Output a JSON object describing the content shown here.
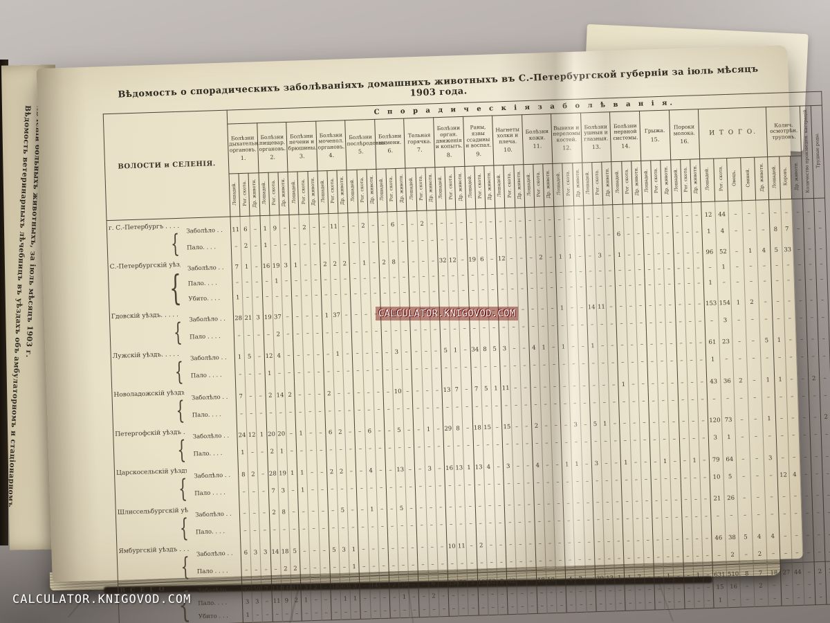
{
  "watermarks": {
    "center": "CALCULATOR.KNIGOVOD.COM",
    "bottom_left": "CALCULATOR.KNIGOVOD.COM"
  },
  "left_page": {
    "vertical_title": "Вѣдомость ветеринарныхъ лѣчебницъ въ уѣздахъ объ амбулаторномъ и стаціонарномъ лѣченіи больныхъ животныхъ, за іюль мѣсяцъ 1903 г."
  },
  "page": {
    "title": "Вѣдомость о спорадическихъ заболѣваніяхъ домашнихъ животныхъ въ С.-Петербургской губерніи за іюль мѣсяцъ 1903 года.",
    "table": {
      "corner_header": "ВОЛОСТИ и СЕЛЕНІЯ.",
      "span_header": "С п о р а д и ч е с к і я   з а б о л ѣ в а н і я.",
      "sub_cols": [
        "Лошадей.",
        "Рог. скота.",
        "Др. животн."
      ],
      "groups": [
        {
          "label": "Болѣзни дыхательн. органовъ.",
          "num": "1."
        },
        {
          "label": "Болѣзни пищевар. органовъ.",
          "num": "2."
        },
        {
          "label": "Болѣзни печени и брюшины.",
          "num": "3."
        },
        {
          "label": "Болѣзни мочепол. органовъ.",
          "num": "4."
        },
        {
          "label": "Болѣзни послѣродовыя.",
          "num": "5."
        },
        {
          "label": "Болѣзни вымени.",
          "num": "6."
        },
        {
          "label": "Тельная горячка.",
          "num": "7."
        },
        {
          "label": "Болѣзни орган. движенія и копытъ.",
          "num": "8."
        },
        {
          "label": "Раны, язвы ссадины и воспал.",
          "num": "9."
        },
        {
          "label": "Нагнеты холки и плеча.",
          "num": "10."
        },
        {
          "label": "Болѣзни кожи.",
          "num": "11."
        },
        {
          "label": "Вывихи и переломы костей.",
          "num": "12."
        },
        {
          "label": "Болѣзни ушныя и глазныя.",
          "num": "13."
        },
        {
          "label": "Болѣзни нервной системы.",
          "num": "14."
        },
        {
          "label": "Грыжа.",
          "num": "15."
        },
        {
          "label": "Пороки молока.",
          "num": "16."
        }
      ],
      "itogo": {
        "label": "И Т О Г О.",
        "cols": [
          "Лошадей.",
          "Рог. скота.",
          "Овецъ.",
          "Свиней.",
          "Др. животн."
        ]
      },
      "trupy": {
        "label": "Колич. осмотрѣн. труповъ.",
        "cols": [
          "Лошадей.",
          "Коровъ.",
          "Др. животн."
        ]
      },
      "extra_cols": [
        "Количество произведен. кастрацій.",
        "Трудные роды."
      ],
      "districts": [
        {
          "name": "г. С.-Петербургъ . . . .",
          "rows": [
            {
              "label": "Заболѣло . .",
              "g": [
                "11 6 –",
                "1 9 –",
                "– 2 –",
                "– 11 –",
                "– 2 –",
                "– 6 –",
                "– 2 –",
                "– – –",
                "– – –",
                "– – –",
                "– – –",
                "– – –",
                "– – –",
                "– – –",
                "– – –",
                "– – –"
              ],
              "itogo": "12 44 – – –",
              "trupy": "– – –",
              "kastr": "–",
              "rody": "–"
            },
            {
              "label": "Пало. . . .",
              "g": [
                "– 2 –",
                "1 – –",
                "– – –",
                "– – –",
                "– – –",
                "– – –",
                "– – –",
                "– – –",
                "– – –",
                "– – –",
                "– – –",
                "– – –",
                "– – –",
                "6 – –",
                "– – –",
                "– – –"
              ],
              "itogo": "1 4 – – –",
              "trupy": "8 7 –",
              "kastr": "–",
              "rody": "–"
            }
          ]
        },
        {
          "name": "С.-Петербургскій уѣздъ .",
          "rows": [
            {
              "label": "Заболѣло . .",
              "g": [
                "7 1 –",
                "16 19 3",
                "1 – –",
                "2 2 2",
                "– 1 –",
                "2 8 –",
                "– – –",
                "32 12 –",
                "19 6 –",
                "12 – –",
                "– 2 –",
                "1 1 –",
                "– 3 –",
                "1 – –",
                "– – –",
                "– – –"
              ],
              "itogo": "96 52 – 1 4",
              "trupy": "5 33 –",
              "kastr": "–",
              "rody": "–"
            },
            {
              "label": "Пало. . . .",
              "g": [
                "– – –",
                "– 1 –",
                "– – –",
                "– – –",
                "– – –",
                "– – –",
                "– – –",
                "– – –",
                "– – –",
                "– – –",
                "– – –",
                "– – –",
                "– – –",
                "– – –",
                "– – –",
                "– – –"
              ],
              "itogo": "– 1 – – –",
              "trupy": "– – –",
              "kastr": "–",
              "rody": "–"
            },
            {
              "label": "Убито. . . .",
              "g": [
                "1 – –",
                "– – –",
                "– – –",
                "– – –",
                "– – –",
                "– – –",
                "– – –",
                "– – –",
                "– – –",
                "– – –",
                "– – –",
                "– – –",
                "– – –",
                "– – –",
                "– – –",
                "– – –"
              ],
              "itogo": "1 – – – –",
              "trupy": "– – –",
              "kastr": "–",
              "rody": "–"
            }
          ]
        },
        {
          "name": "Гдовскій уѣздъ. . . . .",
          "rows": [
            {
              "label": "Заболѣло . .",
              "g": [
                "28 21 3",
                "19 37 –",
                "– – –",
                "1 37 –",
                "– – –",
                "– 9 –",
                "– – –",
                "– – –",
                "– – –",
                "– – –",
                "– – –",
                "1 – –",
                "14 11 –",
                "– – –",
                "– – –",
                "– – –"
              ],
              "itogo": "153 154 1 2 –",
              "trupy": "– – –",
              "kastr": "–",
              "rody": "–"
            },
            {
              "label": "Пало . . . .",
              "g": [
                "– – –",
                "– 2 –",
                "– – –",
                "– – –",
                "– – –",
                "– – –",
                "– – –",
                "– – –",
                "– – –",
                "– – –",
                "– – –",
                "– – –",
                "– – –",
                "– – –",
                "– – –",
                "– – –"
              ],
              "itogo": "– 3 – – –",
              "trupy": "– – –",
              "kastr": "–",
              "rody": "–"
            }
          ]
        },
        {
          "name": "Лужскій уѣздъ. . . . .",
          "rows": [
            {
              "label": "Заболѣло . .",
              "g": [
                "1 5 –",
                "12 4 –",
                "– – –",
                "– 1 –",
                "– – –",
                "– 3 –",
                "– – –",
                "5 1 –",
                "34 8 5",
                "3 – –",
                "4 1 –",
                "1 – –",
                "1 – –",
                "– – –",
                "– – –",
                "– – –"
              ],
              "itogo": "61 23 – – 5",
              "trupy": "1 – –",
              "kastr": "–",
              "rody": "–"
            },
            {
              "label": "Пало . . . .",
              "g": [
                "– – –",
                "1 – –",
                "– – –",
                "– – –",
                "– – –",
                "– – –",
                "– – –",
                "– – –",
                "– – –",
                "– – –",
                "– – –",
                "– – –",
                "– – –",
                "– – –",
                "– – –",
                "– – –"
              ],
              "itogo": "1 – – – –",
              "trupy": "– – –",
              "kastr": "–",
              "rody": "–"
            }
          ]
        },
        {
          "name": "Новоладожскій уѣздъ .",
          "rows": [
            {
              "label": "Заболѣло . .",
              "g": [
                "7 – –",
                "2 14 2",
                "– – –",
                "2 – –",
                "– – –",
                "– 10 –",
                "– – –",
                "13 7 –",
                "7 5 1",
                "11 – –",
                "– – –",
                "– – –",
                "– – –",
                "1 – –",
                "– – –",
                "– – –"
              ],
              "itogo": "43 36 2 – 1",
              "trupy": "1 – –",
              "kastr": "2",
              "rody": "–"
            },
            {
              "label": "Пало. . . .",
              "g": [
                "– – –",
                "– – –",
                "– – –",
                "– – –",
                "– – –",
                "– – –",
                "– – –",
                "– – –",
                "– – –",
                "– – –",
                "– – –",
                "– – –",
                "– – –",
                "– – –",
                "– – –",
                "– – –"
              ],
              "itogo": "– – – – –",
              "trupy": "– – –",
              "kastr": "–",
              "rody": "–"
            }
          ]
        },
        {
          "name": "Петергофскій уѣздъ . .",
          "rows": [
            {
              "label": "Заболѣло . .",
              "g": [
                "24 12 1",
                "20 20 –",
                "1 – –",
                "6 2 –",
                "– 6 –",
                "– 5 –",
                "– 1 –",
                "29 8 –",
                "18 15 –",
                "15 – –",
                "2 – –",
                "– 3 –",
                "5 1 –",
                "– – –",
                "– – –",
                "– – –"
              ],
              "itogo": "120 73 – – 1",
              "trupy": "– – –",
              "kastr": "–",
              "rody": "2"
            },
            {
              "label": "Пало. . . .",
              "g": [
                "1 – –",
                "2 1 –",
                "– – –",
                "– – –",
                "– – –",
                "– – –",
                "– – –",
                "– – –",
                "– – –",
                "– – –",
                "– – –",
                "– – –",
                "– – –",
                "– – –",
                "– – –",
                "– – –"
              ],
              "itogo": "3 1 – – –",
              "trupy": "– – –",
              "kastr": "–",
              "rody": "–"
            }
          ]
        },
        {
          "name": "Царскосельскій уѣздъ .",
          "rows": [
            {
              "label": "Заболѣло . .",
              "g": [
                "8 2 –",
                "28 19 1",
                "1 – –",
                "2 2 –",
                "– 4 –",
                "– 13 –",
                "– 3 –",
                "16 13 1",
                "13 4 –",
                "3 – –",
                "4 – –",
                "1 1 –",
                "3 – –",
                "1 – –",
                "– 1 –",
                "– 1 –"
              ],
              "itogo": "79 64 – – 3",
              "trupy": "– – –",
              "kastr": "–",
              "rody": "–"
            },
            {
              "label": "Пало . . . .",
              "g": [
                "– – –",
                "7 3 –",
                "1 – –",
                "– – –",
                "– – –",
                "– – –",
                "– – –",
                "– – –",
                "– – –",
                "– – –",
                "– – –",
                "– – –",
                "– – –",
                "– – –",
                "– – –",
                "– – –"
              ],
              "itogo": "10 5 – – –",
              "trupy": "12 4 –",
              "kastr": "–",
              "rody": "–"
            }
          ]
        },
        {
          "name": "Шлиссельбургскій уѣздъ",
          "rows": [
            {
              "label": "Заболѣло . .",
              "g": [
                "– – –",
                "2 8 –",
                "– – –",
                "– 5 –",
                "– 1 –",
                "– 5 –",
                "– – –",
                "– – –",
                "– – –",
                "– – –",
                "– – –",
                "– – –",
                "– – –",
                "– – –",
                "– – –",
                "– – –"
              ],
              "itogo": "21 26 – – –",
              "trupy": "– – –",
              "kastr": "–",
              "rody": "–"
            },
            {
              "label": "Пало. . . .",
              "g": [
                "– – –",
                "– – –",
                "– – –",
                "– – –",
                "– – –",
                "– – –",
                "– – –",
                "– – –",
                "– – –",
                "– – –",
                "– – –",
                "– – –",
                "– – –",
                "– – –",
                "– – –",
                "– – –"
              ],
              "itogo": "– – – – –",
              "trupy": "– – –",
              "kastr": "–",
              "rody": "–"
            }
          ]
        },
        {
          "name": "Ямбургскій уѣздъ . . .",
          "rows": [
            {
              "label": "Заболѣло . .",
              "g": [
                "6 3 3",
                "14 18 5",
                "– – –",
                "5 3 1",
                "– – –",
                "– – –",
                "– – –",
                "10 11 –",
                "2 – –",
                "– – –",
                "– – –",
                "– – –",
                "– – –",
                "– – –",
                "– – –",
                "– – –"
              ],
              "itogo": "46 38 5 4 4",
              "trupy": "– – –",
              "kastr": "–",
              "rody": "–"
            },
            {
              "label": "Пало . . . .",
              "g": [
                "– – –",
                "– 2 2",
                "– – –",
                "– – 1",
                "– – –",
                "– – –",
                "– – –",
                "– – –",
                "– – –",
                "– – –",
                "– – –",
                "– – –",
                "– – –",
                "– – –",
                "– – –",
                "– – –"
              ],
              "itogo": "– 2 – 2 –",
              "trupy": "– – –",
              "kastr": "–",
              "rody": "–"
            }
          ]
        }
      ],
      "total": {
        "name": "В С Е Г О",
        "rows": [
          {
            "label": "Заболѣло . .",
            "g": [
              "92 50 7",
              "114 148 11",
              "3 2 –",
              "18 63 3",
              "– 14 –",
              "2 59 –",
              "– 6 –",
              "154 77 3",
              "133 52 8",
              "62 – –",
              "18 10 –",
              "4 7 –",
              "30 13 1",
              "1 7 –",
              "– 1 –",
              "– 1 –"
            ],
            "itogo": "631 510 8 7 18",
            "trupy": "27 44 –",
            "kastr": "2",
            "rody": "2"
          },
          {
            "label": "Пало. . . .",
            "g": [
              "3 3 –",
              "11 9 2",
              "1 – –",
              "– 1 1",
              "– – –",
              "– 1 –",
              "– 2 –",
              "– – –",
              "– – –",
              "– – –",
              "– – –",
              "– – –",
              "– – –",
              "– – –",
              "– – –",
              "– – –"
            ],
            "itogo": "15 16 – 2 –",
            "trupy": "– – –",
            "kastr": "–",
            "rody": "–"
          },
          {
            "label": "Убито . . .",
            "g": [
              "1 – –",
              "– – –",
              "– – –",
              "– – –",
              "– – –",
              "– – –",
              "– – –",
              "– – –",
              "– – –",
              "– – –",
              "– – –",
              "– – –",
              "– – –",
              "– – –",
              "– – –",
              "– – –"
            ],
            "itogo": "1 – – – –",
            "trupy": "– – –",
            "kastr": "–",
            "rody": "–"
          }
        ]
      }
    }
  }
}
